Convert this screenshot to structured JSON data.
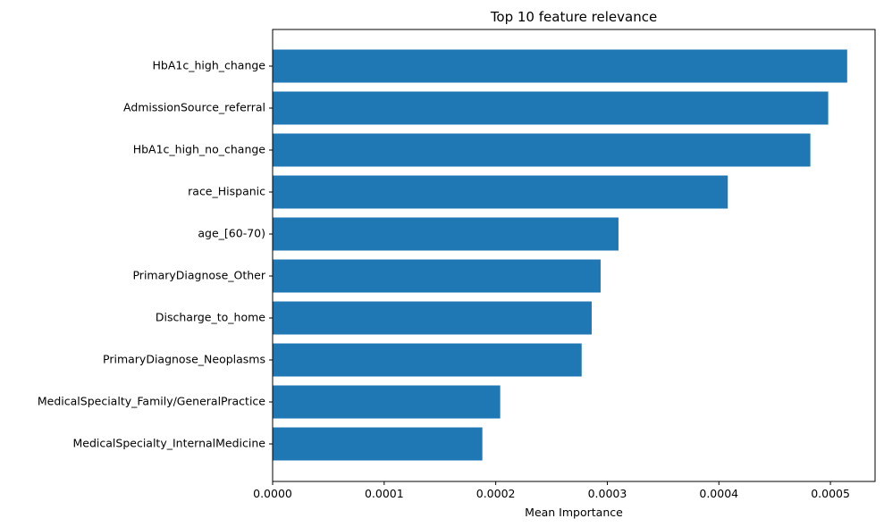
{
  "chart_data": {
    "type": "bar",
    "orientation": "horizontal",
    "title": "Top 10 feature relevance",
    "xlabel": "Mean Importance",
    "ylabel": "",
    "categories": [
      "HbA1c_high_change",
      "AdmissionSource_referral",
      "HbA1c_high_no_change",
      "race_Hispanic",
      "age_[60-70)",
      "PrimaryDiagnose_Other",
      "Discharge_to_home",
      "PrimaryDiagnose_Neoplasms",
      "MedicalSpecialty_Family/GeneralPractice",
      "MedicalSpecialty_InternalMedicine"
    ],
    "values": [
      0.000515,
      0.000498,
      0.000482,
      0.000408,
      0.00031,
      0.000294,
      0.000286,
      0.000277,
      0.000204,
      0.000188
    ],
    "xlim": [
      0,
      0.00054
    ],
    "xticks": [
      0,
      0.0001,
      0.0002,
      0.0003,
      0.0004,
      0.0005
    ],
    "xtick_labels": [
      "0.0000",
      "0.0001",
      "0.0002",
      "0.0003",
      "0.0004",
      "0.0005"
    ],
    "grid": false,
    "legend": "none",
    "bar_color": "#1f77b4"
  }
}
